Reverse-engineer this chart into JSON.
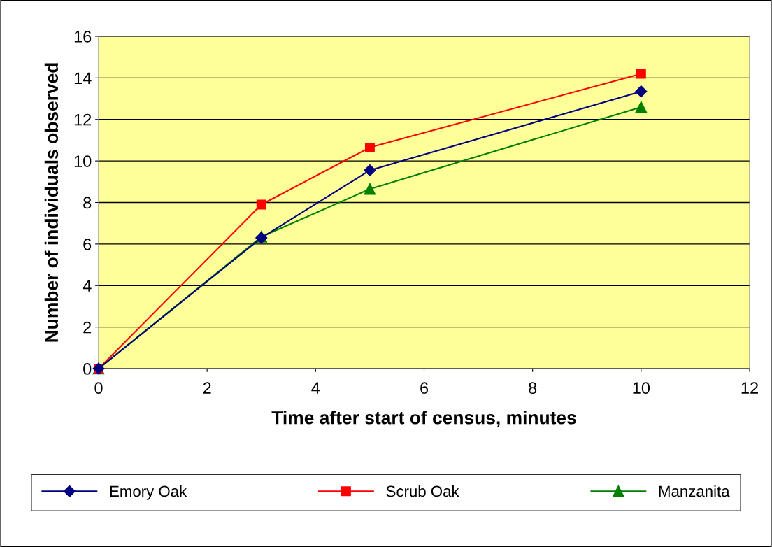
{
  "chart_data": {
    "type": "line",
    "xlabel": "Time after start of census, minutes",
    "ylabel": "Number of individuals observed",
    "x": [
      0,
      3,
      5,
      10
    ],
    "series": [
      {
        "name": "Emory Oak",
        "color": "#000080",
        "marker": "diamond",
        "values": [
          0,
          6.3,
          9.55,
          13.35
        ]
      },
      {
        "name": "Scrub Oak",
        "color": "#ff0000",
        "marker": "square",
        "values": [
          0,
          7.9,
          10.65,
          14.2
        ]
      },
      {
        "name": "Manzanita",
        "color": "#008000",
        "marker": "triangle",
        "values": [
          0,
          6.35,
          8.65,
          12.6
        ]
      }
    ],
    "xlim": [
      0,
      12
    ],
    "xticks": [
      0,
      2,
      4,
      6,
      8,
      10,
      12
    ],
    "ylim": [
      0,
      16
    ],
    "yticks": [
      0,
      2,
      4,
      6,
      8,
      10,
      12,
      14,
      16
    ],
    "grid": "y",
    "legend": "bottom"
  }
}
